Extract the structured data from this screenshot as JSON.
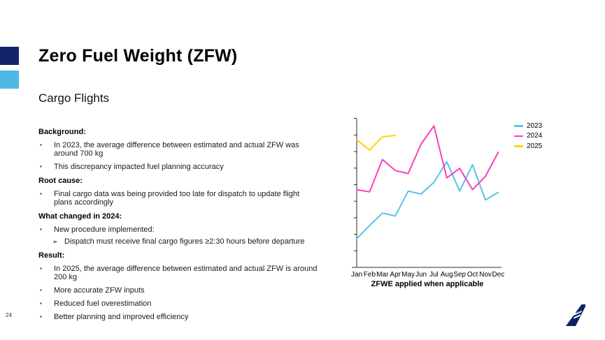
{
  "slide": {
    "title": "Zero Fuel Weight (ZFW)",
    "subtitle": "Cargo Flights",
    "page_number": "24"
  },
  "markers": {
    "bullet": "▪",
    "sub_bullet": "➢"
  },
  "colors": {
    "accent_navy": "#12246B",
    "accent_light_blue": "#4CB9E6",
    "logo_navy": "#0B2265",
    "logo_accent": "#7FB8E6",
    "axis": "#2b2b2b"
  },
  "content": {
    "items": [
      {
        "type": "header",
        "text": "Background:"
      },
      {
        "type": "bullet",
        "text": "In 2023, the average difference between estimated and actual ZFW was around 700 kg"
      },
      {
        "type": "bullet",
        "text": "This discrepancy impacted fuel planning accuracy"
      },
      {
        "type": "header",
        "text": "Root cause:"
      },
      {
        "type": "bullet",
        "text": "Final cargo data was being provided too late for dispatch to update flight plans accordingly"
      },
      {
        "type": "header",
        "text": "What changed in 2024:"
      },
      {
        "type": "bullet",
        "text": "New procedure implemented:"
      },
      {
        "type": "subbullet",
        "text": "Dispatch must receive final cargo figures ≥2:30 hours before departure"
      },
      {
        "type": "header",
        "text": "Result:"
      },
      {
        "type": "bullet",
        "text": "In 2025, the average difference between estimated and actual ZFW is around 200 kg"
      },
      {
        "type": "bullet",
        "text": "More accurate ZFW inputs"
      },
      {
        "type": "bullet",
        "text": "Reduced fuel overestimation"
      },
      {
        "type": "bullet",
        "text": "Better planning and improved efficiency"
      }
    ]
  },
  "chart_data": {
    "type": "line",
    "title": "",
    "xlabel": "",
    "ylabel": "",
    "caption": "ZFWE applied when applicable",
    "categories": [
      "Jan",
      "Feb",
      "Mar",
      "Apr",
      "May",
      "Jun",
      "Jul",
      "Aug",
      "Sep",
      "Oct",
      "Nov",
      "Dec"
    ],
    "y_axis": {
      "labels_visible": false,
      "tick_count": 9,
      "ylim": [
        0,
        105
      ],
      "unit": "relative (axis unlabeled in source)"
    },
    "grid": false,
    "legend_position": "right",
    "series": [
      {
        "name": "2023",
        "color": "#5BC2E7",
        "values": [
          20.5,
          29.5,
          38,
          36,
          53,
          51,
          59,
          73,
          53,
          71,
          47,
          52
        ]
      },
      {
        "name": "2024",
        "color": "#F93EBE",
        "values": [
          54,
          52.5,
          74.5,
          67,
          65,
          85,
          97.5,
          62,
          68.5,
          54,
          63,
          79.5
        ]
      },
      {
        "name": "2025",
        "color": "#FFD500",
        "values": [
          88,
          81,
          90,
          91,
          null,
          null,
          null,
          null,
          null,
          null,
          null,
          null
        ]
      }
    ]
  }
}
